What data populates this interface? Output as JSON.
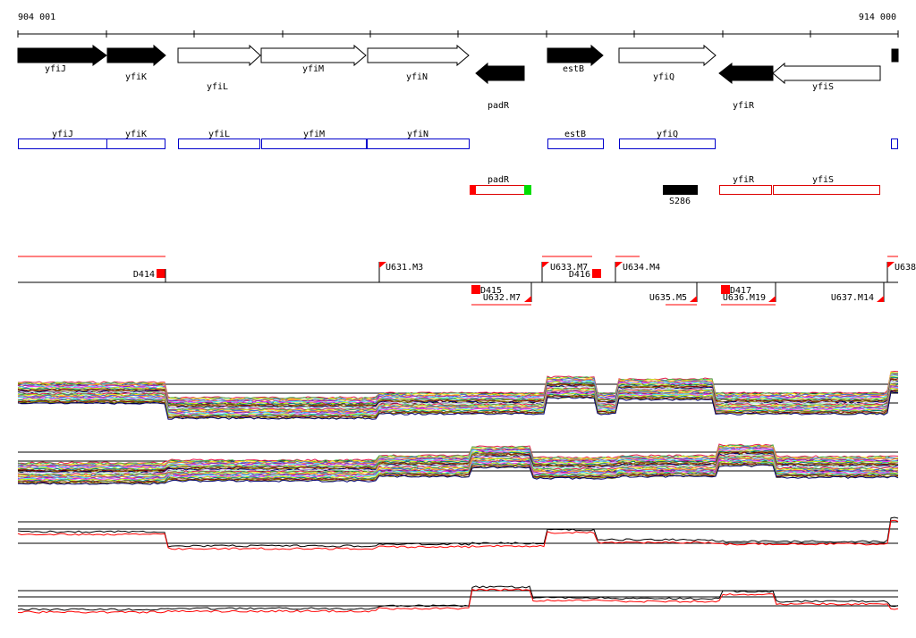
{
  "coords": {
    "start": "904 001",
    "end": "914 000"
  },
  "genes": [
    {
      "label": "yfiJ",
      "strand": "+",
      "fill": "black"
    },
    {
      "label": "yfiK",
      "strand": "+",
      "fill": "black"
    },
    {
      "label": "yfiL",
      "strand": "+",
      "fill": "white"
    },
    {
      "label": "yfiM",
      "strand": "+",
      "fill": "white"
    },
    {
      "label": "yfiN",
      "strand": "+",
      "fill": "white"
    },
    {
      "label": "padR",
      "strand": "-",
      "fill": "black"
    },
    {
      "label": "estB",
      "strand": "+",
      "fill": "black"
    },
    {
      "label": "yfiQ",
      "strand": "+",
      "fill": "white"
    },
    {
      "label": "yfiR",
      "strand": "-",
      "fill": "black"
    },
    {
      "label": "yfiS",
      "strand": "-",
      "fill": "white"
    }
  ],
  "blue_boxes": [
    "yfiJ",
    "yfiK",
    "yfiL",
    "yfiM",
    "yfiN",
    "estB",
    "yfiQ"
  ],
  "red_boxes": [
    "padR",
    "yfiR",
    "yfiS"
  ],
  "s_feature": "S286",
  "segments": {
    "above": [
      {
        "label": "U631.M3"
      },
      {
        "label": "U633.M7"
      },
      {
        "label": "U634.M4"
      },
      {
        "label": "U638"
      }
    ],
    "above_deleted": [
      {
        "label": "D414"
      },
      {
        "label": "D416"
      }
    ],
    "below": [
      {
        "label": "U632.M7"
      },
      {
        "label": "U635.M5"
      },
      {
        "label": "U636.M19"
      },
      {
        "label": "U637.M14"
      }
    ],
    "below_deleted": [
      {
        "label": "D415"
      },
      {
        "label": "D417"
      }
    ]
  },
  "colors": {
    "blue_box": "#0000cc",
    "red_box": "#dd0000",
    "flag": "#ff0000",
    "green_tip": "#00dd00",
    "black": "#000000"
  }
}
